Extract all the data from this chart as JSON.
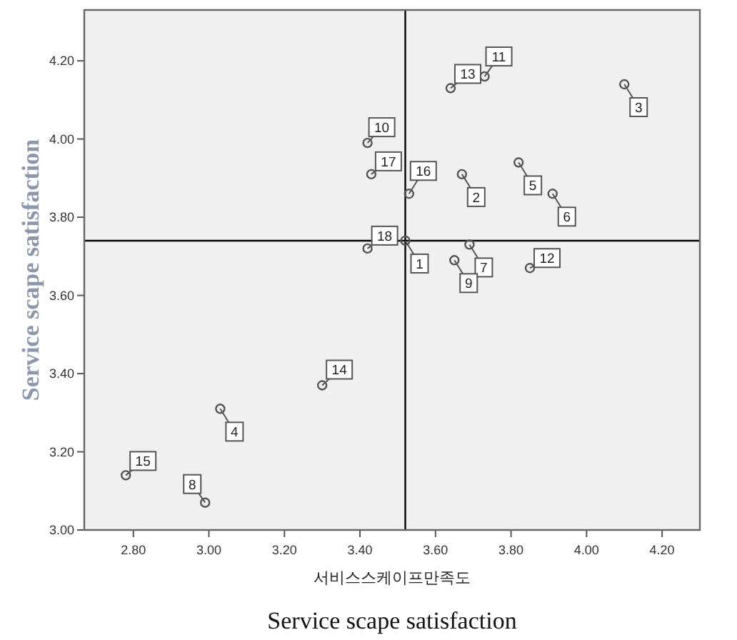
{
  "chart_data": {
    "type": "scatter",
    "xlabel": "서비스스케이프만족도",
    "ylabel": "Service  scape  satisfaction",
    "x": [
      3.52,
      3.67,
      4.1,
      3.03,
      3.82,
      3.91,
      3.69,
      2.99,
      3.65,
      3.42,
      3.73,
      3.85,
      3.64,
      3.3,
      2.78,
      3.53,
      3.43,
      3.42
    ],
    "series": [
      {
        "color": "#555555",
        "values": [
          3.74,
          3.91,
          4.14,
          3.31,
          3.94,
          3.86,
          3.73,
          3.07,
          3.69,
          3.99,
          4.16,
          3.67,
          4.13,
          3.37,
          3.14,
          3.86,
          3.91,
          3.72
        ]
      }
    ],
    "marker": "circle",
    "xlim": [
      2.67,
      4.3
    ],
    "ylim": [
      3.0,
      4.33
    ],
    "xticks": [
      {
        "value": 2.8,
        "label": "2.80"
      },
      {
        "value": 3.0,
        "label": "3.00"
      },
      {
        "value": 3.2,
        "label": "3.20"
      },
      {
        "value": 3.4,
        "label": "3.40"
      },
      {
        "value": 3.6,
        "label": "3.60"
      },
      {
        "value": 3.8,
        "label": "3.80"
      },
      {
        "value": 4.0,
        "label": "4.00"
      },
      {
        "value": 4.2,
        "label": "4.20"
      }
    ],
    "yticks": [
      {
        "value": 3.0,
        "label": "3.00"
      },
      {
        "value": 3.2,
        "label": "3.20"
      },
      {
        "value": 3.4,
        "label": "3.40"
      },
      {
        "value": 3.6,
        "label": "3.60"
      },
      {
        "value": 3.8,
        "label": "3.80"
      },
      {
        "value": 4.0,
        "label": "4.00"
      },
      {
        "value": 4.2,
        "label": "4.20"
      }
    ],
    "ref_lines": [
      {
        "axis": "x",
        "value": 3.52,
        "color": "#000000"
      },
      {
        "axis": "y",
        "value": 3.74,
        "color": "#000000"
      }
    ],
    "annotations": [
      {
        "text": "1",
        "x": 3.52,
        "y": 3.74
      },
      {
        "text": "2",
        "x": 3.67,
        "y": 3.91
      },
      {
        "text": "3",
        "x": 4.1,
        "y": 4.14
      },
      {
        "text": "4",
        "x": 3.03,
        "y": 3.31
      },
      {
        "text": "5",
        "x": 3.82,
        "y": 3.94
      },
      {
        "text": "6",
        "x": 3.91,
        "y": 3.86
      },
      {
        "text": "7",
        "x": 3.69,
        "y": 3.73
      },
      {
        "text": "8",
        "x": 2.99,
        "y": 3.07
      },
      {
        "text": "9",
        "x": 3.65,
        "y": 3.69
      },
      {
        "text": "10",
        "x": 3.42,
        "y": 3.99
      },
      {
        "text": "11",
        "x": 3.73,
        "y": 4.16
      },
      {
        "text": "12",
        "x": 3.85,
        "y": 3.67
      },
      {
        "text": "13",
        "x": 3.64,
        "y": 4.13
      },
      {
        "text": "14",
        "x": 3.3,
        "y": 3.37
      },
      {
        "text": "15",
        "x": 2.78,
        "y": 3.14
      },
      {
        "text": "16",
        "x": 3.53,
        "y": 3.86
      },
      {
        "text": "17",
        "x": 3.43,
        "y": 3.91
      },
      {
        "text": "18",
        "x": 3.42,
        "y": 3.72
      },
      "Service scape satisfaction"
    ]
  }
}
